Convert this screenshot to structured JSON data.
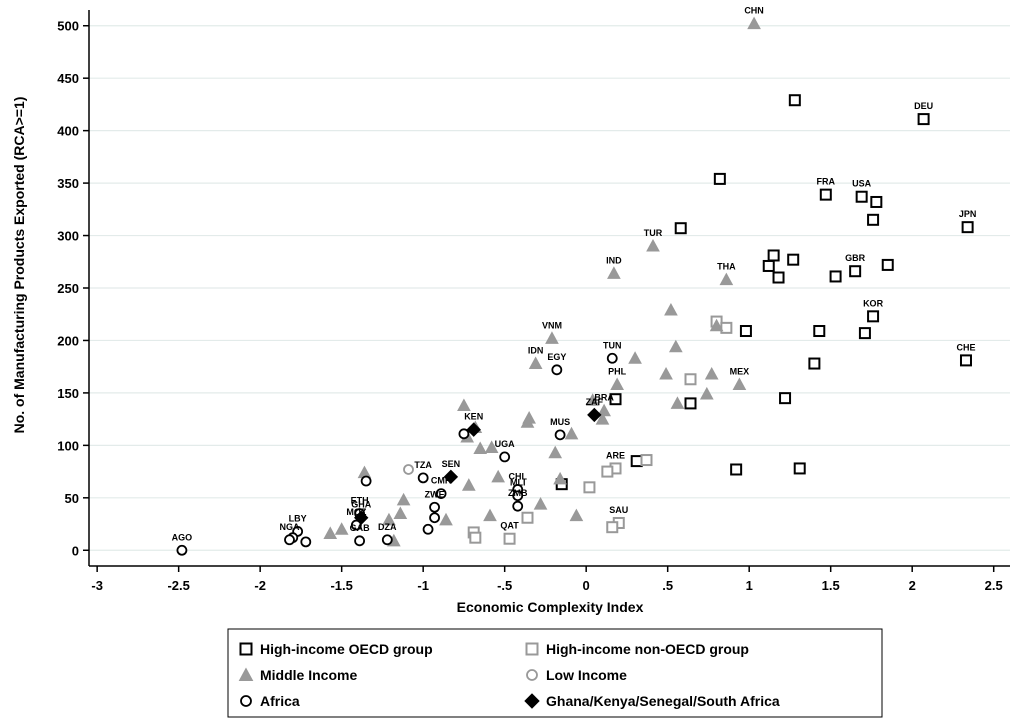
{
  "chart_data": {
    "type": "scatter",
    "xlabel": "Economic Complexity Index",
    "ylabel": "No. of Manufacturing Products Exported (RCA>=1)",
    "xlim": [
      -3.05,
      2.6
    ],
    "ylim": [
      -15,
      515
    ],
    "xticks": [
      -3,
      -2.5,
      -2,
      -1.5,
      -1,
      -0.5,
      0,
      0.5,
      1,
      1.5,
      2,
      2.5
    ],
    "xtick_labels": [
      "-3",
      "-2.5",
      "-2",
      "-1.5",
      "-1",
      "-.5",
      "0",
      ".5",
      "1",
      "1.5",
      "2",
      "2.5"
    ],
    "yticks": [
      0,
      50,
      100,
      150,
      200,
      250,
      300,
      350,
      400,
      450,
      500
    ],
    "ytick_labels": [
      "0",
      "50",
      "100",
      "150",
      "200",
      "250",
      "300",
      "350",
      "400",
      "450",
      "500"
    ],
    "grid": "horizontal",
    "legend_position": "bottom",
    "series": [
      {
        "name": "High-income OECD group",
        "marker": "square",
        "color": "#000000",
        "filled": false,
        "points": [
          {
            "x": 1.28,
            "y": 429
          },
          {
            "x": 2.07,
            "y": 411,
            "label": "DEU"
          },
          {
            "x": 0.82,
            "y": 354
          },
          {
            "x": 1.47,
            "y": 339,
            "label": "FRA"
          },
          {
            "x": 1.69,
            "y": 337,
            "label": "USA"
          },
          {
            "x": 1.78,
            "y": 332
          },
          {
            "x": 1.76,
            "y": 315
          },
          {
            "x": 2.34,
            "y": 308,
            "label": "JPN"
          },
          {
            "x": 0.58,
            "y": 307
          },
          {
            "x": 1.15,
            "y": 281
          },
          {
            "x": 1.27,
            "y": 277
          },
          {
            "x": 1.12,
            "y": 271
          },
          {
            "x": 1.85,
            "y": 272
          },
          {
            "x": 1.65,
            "y": 266,
            "label": "GBR"
          },
          {
            "x": 1.53,
            "y": 261
          },
          {
            "x": 1.18,
            "y": 260
          },
          {
            "x": 1.76,
            "y": 223,
            "label": "KOR"
          },
          {
            "x": 0.98,
            "y": 209
          },
          {
            "x": 1.43,
            "y": 209
          },
          {
            "x": 1.71,
            "y": 207
          },
          {
            "x": 2.33,
            "y": 181,
            "label": "CHE"
          },
          {
            "x": 1.4,
            "y": 178
          },
          {
            "x": 1.22,
            "y": 145
          },
          {
            "x": 0.18,
            "y": 144
          },
          {
            "x": 0.64,
            "y": 140
          },
          {
            "x": 0.31,
            "y": 85
          },
          {
            "x": 0.92,
            "y": 77
          },
          {
            "x": 1.31,
            "y": 78
          },
          {
            "x": -0.15,
            "y": 63
          }
        ]
      },
      {
        "name": "High-income non-OECD group",
        "marker": "square",
        "color": "#999999",
        "filled": false,
        "points": [
          {
            "x": 0.8,
            "y": 218
          },
          {
            "x": 0.86,
            "y": 212
          },
          {
            "x": 0.64,
            "y": 163
          },
          {
            "x": 0.18,
            "y": 78,
            "label": "ARE"
          },
          {
            "x": 0.13,
            "y": 75
          },
          {
            "x": 0.37,
            "y": 86
          },
          {
            "x": 0.02,
            "y": 60
          },
          {
            "x": 0.2,
            "y": 26,
            "label": "SAU"
          },
          {
            "x": 0.16,
            "y": 22
          },
          {
            "x": -0.36,
            "y": 31
          },
          {
            "x": -0.69,
            "y": 17
          },
          {
            "x": -0.68,
            "y": 12
          },
          {
            "x": -0.47,
            "y": 11,
            "label": "QAT"
          }
        ]
      },
      {
        "name": "Middle Income",
        "marker": "triangle",
        "color": "#999999",
        "filled": true,
        "points": [
          {
            "x": 1.03,
            "y": 502,
            "label": "CHN"
          },
          {
            "x": 0.41,
            "y": 290,
            "label": "TUR"
          },
          {
            "x": 0.17,
            "y": 264,
            "label": "IND"
          },
          {
            "x": 0.86,
            "y": 258,
            "label": "THA"
          },
          {
            "x": 0.52,
            "y": 229
          },
          {
            "x": 0.8,
            "y": 214
          },
          {
            "x": -0.21,
            "y": 202,
            "label": "VNM"
          },
          {
            "x": -0.31,
            "y": 178,
            "label": "IDN"
          },
          {
            "x": 0.55,
            "y": 194
          },
          {
            "x": 0.3,
            "y": 183
          },
          {
            "x": 0.77,
            "y": 168
          },
          {
            "x": 0.94,
            "y": 158,
            "label": "MEX"
          },
          {
            "x": 0.49,
            "y": 168
          },
          {
            "x": 0.19,
            "y": 158,
            "label": "PHL"
          },
          {
            "x": 0.74,
            "y": 149
          },
          {
            "x": 0.56,
            "y": 140
          },
          {
            "x": 0.04,
            "y": 143
          },
          {
            "x": 0.11,
            "y": 133,
            "label": "BRA"
          },
          {
            "x": 0.1,
            "y": 125
          },
          {
            "x": -0.75,
            "y": 138
          },
          {
            "x": -0.73,
            "y": 108
          },
          {
            "x": -0.68,
            "y": 117
          },
          {
            "x": -0.35,
            "y": 126
          },
          {
            "x": -0.36,
            "y": 122
          },
          {
            "x": -0.09,
            "y": 111
          },
          {
            "x": -0.58,
            "y": 98
          },
          {
            "x": -0.65,
            "y": 97
          },
          {
            "x": -0.19,
            "y": 93
          },
          {
            "x": -0.54,
            "y": 70
          },
          {
            "x": -0.16,
            "y": 68
          },
          {
            "x": -0.28,
            "y": 44
          },
          {
            "x": -0.72,
            "y": 62
          },
          {
            "x": -1.36,
            "y": 74
          },
          {
            "x": -1.12,
            "y": 48
          },
          {
            "x": -1.14,
            "y": 35
          },
          {
            "x": -0.86,
            "y": 29
          },
          {
            "x": -0.59,
            "y": 33
          },
          {
            "x": -0.06,
            "y": 33
          },
          {
            "x": -1.21,
            "y": 29
          },
          {
            "x": -1.5,
            "y": 20
          },
          {
            "x": -1.57,
            "y": 16
          },
          {
            "x": -1.18,
            "y": 9
          }
        ]
      },
      {
        "name": "Low Income",
        "marker": "circle",
        "color": "#999999",
        "filled": false,
        "points": [
          {
            "x": -1.09,
            "y": 77
          }
        ]
      },
      {
        "name": "Africa",
        "marker": "circle",
        "color": "#000000",
        "filled": false,
        "points": [
          {
            "x": 0.16,
            "y": 183,
            "label": "TUN"
          },
          {
            "x": -0.18,
            "y": 172,
            "label": "EGY"
          },
          {
            "x": -0.75,
            "y": 111
          },
          {
            "x": -0.16,
            "y": 110,
            "label": "MUS"
          },
          {
            "x": -0.5,
            "y": 89,
            "label": "UGA"
          },
          {
            "x": -1.0,
            "y": 69,
            "label": "TZA"
          },
          {
            "x": -1.35,
            "y": 66
          },
          {
            "x": -0.42,
            "y": 58,
            "label": "CHL"
          },
          {
            "x": -0.42,
            "y": 52,
            "label": "MLI"
          },
          {
            "x": -0.42,
            "y": 42,
            "label": "ZMB"
          },
          {
            "x": -0.89,
            "y": 54,
            "label": "CMR"
          },
          {
            "x": -0.93,
            "y": 41,
            "label": "ZWE"
          },
          {
            "x": -0.93,
            "y": 31
          },
          {
            "x": -0.97,
            "y": 20
          },
          {
            "x": -1.39,
            "y": 35,
            "label": "ETH"
          },
          {
            "x": -1.41,
            "y": 24,
            "label": "MOZ"
          },
          {
            "x": -1.77,
            "y": 18,
            "label": "LBY"
          },
          {
            "x": -1.8,
            "y": 12
          },
          {
            "x": -1.72,
            "y": 8
          },
          {
            "x": -1.82,
            "y": 10,
            "label": "NGA"
          },
          {
            "x": -1.39,
            "y": 9,
            "label": "GAB"
          },
          {
            "x": -1.22,
            "y": 10,
            "label": "DZA"
          },
          {
            "x": -2.48,
            "y": 0,
            "label": "AGO"
          }
        ]
      },
      {
        "name": "Ghana/Kenya/Senegal/South Africa",
        "marker": "diamond",
        "color": "#000000",
        "filled": true,
        "points": [
          {
            "x": -0.69,
            "y": 115,
            "label": "KEN"
          },
          {
            "x": 0.05,
            "y": 129,
            "label": "ZAF"
          },
          {
            "x": -0.83,
            "y": 70,
            "label": "SEN"
          },
          {
            "x": -1.38,
            "y": 31,
            "label": "GHA"
          }
        ]
      }
    ]
  }
}
